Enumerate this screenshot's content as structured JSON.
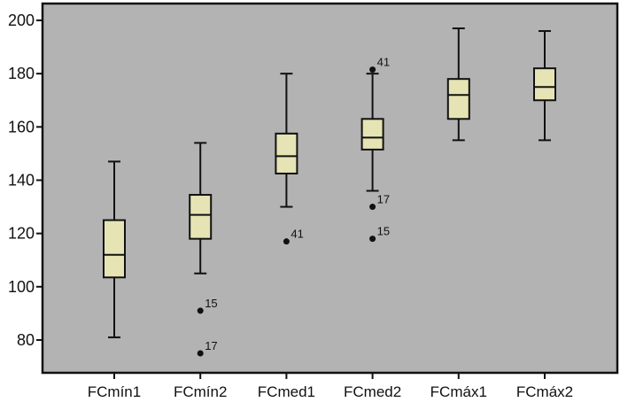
{
  "chart_data": {
    "type": "box",
    "title": "",
    "xlabel": "",
    "ylabel": "",
    "ylim": [
      68,
      206
    ],
    "yticks": [
      80,
      100,
      120,
      140,
      160,
      180,
      200
    ],
    "grid": false,
    "colors": {
      "plot_bg": "#b3b3b3",
      "box_fill": "#e6e4b4",
      "line": "#111111"
    },
    "categories": [
      "FCmín1",
      "FCmín2",
      "FCmed1",
      "FCmed2",
      "FCmáx1",
      "FCmáx2"
    ],
    "boxes": [
      {
        "name": "FCmín1",
        "whisker_low": 81,
        "q1": 103.5,
        "median": 112,
        "q3": 125,
        "whisker_high": 147,
        "outliers": []
      },
      {
        "name": "FCmín2",
        "whisker_low": 105,
        "q1": 118,
        "median": 127,
        "q3": 134.5,
        "whisker_high": 154,
        "outliers": [
          {
            "value": 91,
            "label": "15"
          },
          {
            "value": 75,
            "label": "17"
          }
        ]
      },
      {
        "name": "FCmed1",
        "whisker_low": 130,
        "q1": 142.5,
        "median": 149,
        "q3": 157.5,
        "whisker_high": 180,
        "outliers": [
          {
            "value": 117,
            "label": "41"
          }
        ]
      },
      {
        "name": "FCmed2",
        "whisker_low": 136,
        "q1": 151.5,
        "median": 156,
        "q3": 163,
        "whisker_high": 180,
        "outliers": [
          {
            "value": 181.5,
            "label": "41"
          },
          {
            "value": 130,
            "label": "17"
          },
          {
            "value": 118,
            "label": "15"
          }
        ]
      },
      {
        "name": "FCmáx1",
        "whisker_low": 155,
        "q1": 163,
        "median": 172,
        "q3": 178,
        "whisker_high": 197,
        "outliers": []
      },
      {
        "name": "FCmáx2",
        "whisker_low": 155,
        "q1": 170,
        "median": 175,
        "q3": 182,
        "whisker_high": 196,
        "outliers": []
      }
    ]
  }
}
